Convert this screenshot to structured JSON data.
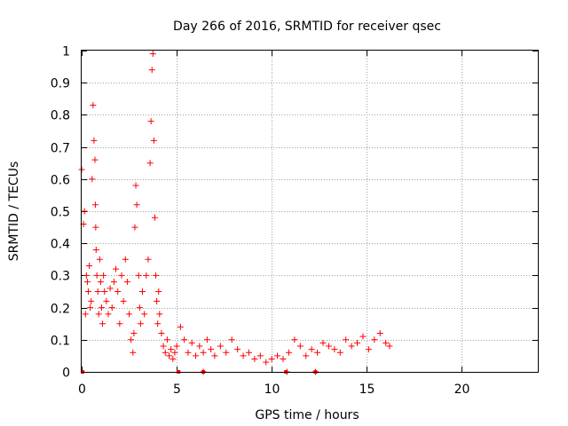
{
  "chart_data": {
    "type": "scatter",
    "title": "Day 266 of 2016, SRMTID for receiver qsec",
    "xlabel": "GPS time / hours",
    "ylabel": "SRMTID / TECUs",
    "xlim": [
      0,
      24
    ],
    "ylim": [
      0,
      1
    ],
    "grid": true,
    "marker": "+",
    "color": "#ff0000",
    "xticks": [
      0,
      5,
      10,
      15,
      20
    ],
    "yticks": [
      0,
      0.1,
      0.2,
      0.3,
      0.4,
      0.5,
      0.6,
      0.7,
      0.8,
      0.9,
      1
    ],
    "xtick_labels": [
      "0",
      "5",
      "10",
      "15",
      "20"
    ],
    "ytick_labels": [
      "0",
      "0.1",
      "0.2",
      "0.3",
      "0.4",
      "0.5",
      "0.6",
      "0.7",
      "0.8",
      "0.9",
      "1"
    ],
    "series": [
      {
        "name": "SRMTID",
        "x": [
          0.0,
          0.1,
          0.15,
          0.2,
          0.25,
          0.3,
          0.35,
          0.4,
          0.45,
          0.5,
          0.55,
          0.6,
          0.65,
          0.7,
          0.72,
          0.74,
          0.76,
          0.8,
          0.85,
          0.9,
          0.95,
          1.0,
          1.05,
          1.1,
          1.15,
          1.2,
          1.3,
          1.4,
          1.5,
          1.6,
          1.7,
          1.8,
          1.9,
          2.0,
          2.1,
          2.2,
          2.3,
          2.4,
          2.5,
          2.6,
          2.7,
          2.75,
          2.8,
          2.85,
          2.9,
          3.0,
          3.05,
          3.1,
          3.2,
          3.3,
          3.4,
          3.5,
          3.6,
          3.65,
          3.7,
          3.75,
          3.8,
          3.85,
          3.9,
          3.95,
          4.0,
          4.05,
          4.1,
          4.2,
          4.3,
          4.4,
          4.5,
          4.6,
          4.7,
          4.8,
          4.9,
          5.0,
          5.2,
          5.4,
          5.6,
          5.8,
          6.0,
          6.2,
          6.4,
          6.6,
          6.8,
          7.0,
          7.3,
          7.6,
          7.9,
          8.2,
          8.5,
          8.8,
          9.1,
          9.4,
          9.7,
          10.0,
          10.3,
          10.6,
          10.9,
          11.2,
          11.5,
          11.8,
          12.1,
          12.4,
          12.7,
          13.0,
          13.3,
          13.6,
          13.9,
          14.2,
          14.5,
          14.8,
          15.1,
          15.4,
          15.7,
          16.0,
          16.2,
          6.4,
          10.8,
          12.3
        ],
        "y": [
          0.63,
          0.46,
          0.5,
          0.18,
          0.3,
          0.28,
          0.25,
          0.33,
          0.2,
          0.22,
          0.6,
          0.83,
          0.72,
          0.66,
          0.52,
          0.45,
          0.38,
          0.3,
          0.25,
          0.18,
          0.35,
          0.28,
          0.2,
          0.15,
          0.3,
          0.25,
          0.22,
          0.18,
          0.26,
          0.2,
          0.28,
          0.32,
          0.25,
          0.15,
          0.3,
          0.22,
          0.35,
          0.28,
          0.18,
          0.1,
          0.06,
          0.12,
          0.45,
          0.58,
          0.52,
          0.3,
          0.2,
          0.15,
          0.25,
          0.18,
          0.3,
          0.35,
          0.65,
          0.78,
          0.94,
          0.99,
          0.72,
          0.48,
          0.3,
          0.22,
          0.15,
          0.25,
          0.18,
          0.12,
          0.08,
          0.06,
          0.1,
          0.05,
          0.07,
          0.04,
          0.06,
          0.08,
          0.14,
          0.1,
          0.06,
          0.09,
          0.05,
          0.08,
          0.06,
          0.1,
          0.07,
          0.05,
          0.08,
          0.06,
          0.1,
          0.07,
          0.05,
          0.06,
          0.04,
          0.05,
          0.03,
          0.04,
          0.05,
          0.04,
          0.06,
          0.1,
          0.08,
          0.05,
          0.07,
          0.06,
          0.09,
          0.08,
          0.07,
          0.06,
          0.1,
          0.08,
          0.09,
          0.11,
          0.07,
          0.1,
          0.12,
          0.09,
          0.08,
          0.0,
          0.0,
          0.0
        ]
      }
    ],
    "zero_markers_x": [
      0.05,
      5.1,
      6.4,
      10.75,
      12.3
    ]
  }
}
